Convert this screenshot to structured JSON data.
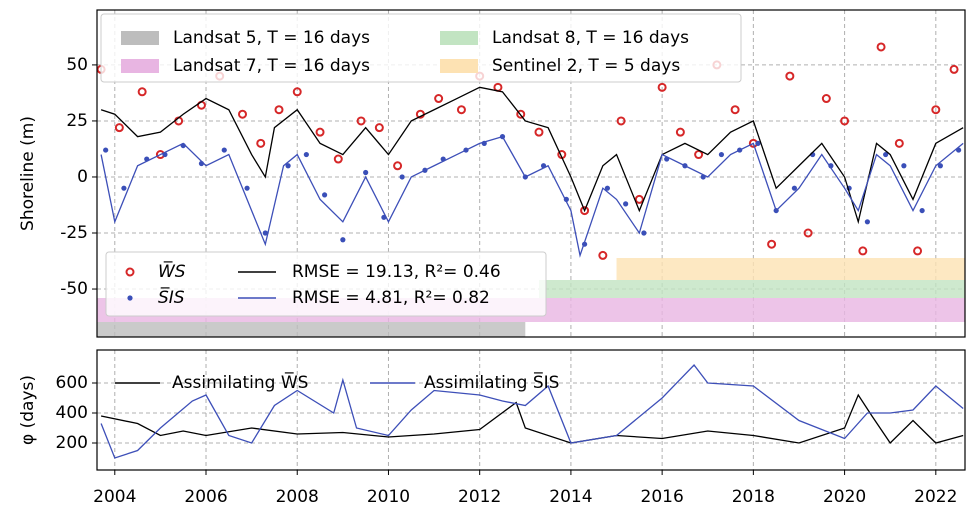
{
  "chart_data": [
    {
      "type": "combo",
      "ylabel": "Shoreline (m)",
      "xlim": [
        2003.61,
        2022.64
      ],
      "ylim": [
        -71.4,
        74.5
      ],
      "yticks": [
        -50,
        -25,
        0,
        25,
        50
      ],
      "grid": true,
      "missions": [
        {
          "name": "Landsat 5, T = 16 days",
          "color": "#bdbdbd",
          "start": 2003.61,
          "end": 2013.0
        },
        {
          "name": "Landsat 7, T = 16 days",
          "color": "#e8b5e2",
          "start": 2003.61,
          "end": 2022.64
        },
        {
          "name": "Landsat 8, T = 16 days",
          "color": "#c2e4c2",
          "start": 2013.3,
          "end": 2022.64
        },
        {
          "name": "Sentinel 2, T = 5 days",
          "color": "#fde2b3",
          "start": 2015.0,
          "end": 2022.64
        }
      ],
      "series": [
        {
          "name": "W̅S",
          "kind": "scatter",
          "color": "#d62728",
          "x": [
            2003.7,
            2004.1,
            2004.6,
            2005.0,
            2005.4,
            2005.9,
            2006.3,
            2006.8,
            2007.2,
            2007.6,
            2008.0,
            2008.5,
            2008.9,
            2009.4,
            2009.8,
            2010.2,
            2010.7,
            2011.1,
            2011.6,
            2012.0,
            2012.4,
            2012.9,
            2013.3,
            2013.8,
            2014.3,
            2014.7,
            2015.1,
            2015.5,
            2016.0,
            2016.4,
            2016.8,
            2017.2,
            2017.6,
            2018.0,
            2018.4,
            2018.8,
            2019.2,
            2019.6,
            2020.0,
            2020.4,
            2020.8,
            2021.2,
            2021.6,
            2022.0,
            2022.4
          ],
          "values": [
            48,
            22,
            38,
            10,
            25,
            32,
            45,
            28,
            15,
            30,
            38,
            20,
            8,
            25,
            22,
            5,
            28,
            35,
            30,
            45,
            40,
            28,
            20,
            10,
            -15,
            -35,
            25,
            -10,
            40,
            20,
            10,
            50,
            30,
            15,
            -30,
            45,
            -25,
            35,
            25,
            -33,
            58,
            15,
            -33,
            30,
            48
          ]
        },
        {
          "name": "S̅IS",
          "kind": "scatter",
          "color": "#3a4fb8",
          "x": [
            2003.8,
            2004.2,
            2004.7,
            2005.1,
            2005.5,
            2005.9,
            2006.4,
            2006.9,
            2007.3,
            2007.8,
            2008.2,
            2008.6,
            2009.0,
            2009.5,
            2009.9,
            2010.3,
            2010.8,
            2011.2,
            2011.7,
            2012.1,
            2012.5,
            2013.0,
            2013.4,
            2013.9,
            2014.3,
            2014.8,
            2015.2,
            2015.6,
            2016.1,
            2016.5,
            2016.9,
            2017.3,
            2017.7,
            2018.1,
            2018.5,
            2018.9,
            2019.3,
            2019.7,
            2020.1,
            2020.5,
            2020.9,
            2021.3,
            2021.7,
            2022.1,
            2022.5
          ],
          "values": [
            12,
            -5,
            8,
            10,
            14,
            6,
            12,
            -5,
            -25,
            5,
            10,
            -8,
            -28,
            2,
            -18,
            0,
            3,
            8,
            12,
            15,
            18,
            0,
            5,
            -10,
            -30,
            -5,
            -12,
            -25,
            8,
            5,
            0,
            10,
            12,
            15,
            -15,
            -5,
            10,
            5,
            -5,
            -20,
            10,
            5,
            -15,
            5,
            12
          ]
        },
        {
          "name": "RMSE = 19.13, R²= 0.46",
          "kind": "line",
          "color": "#000000",
          "x": [
            2003.7,
            2004,
            2004.5,
            2005,
            2005.5,
            2006,
            2006.5,
            2007,
            2007.3,
            2007.5,
            2008,
            2008.5,
            2009,
            2009.5,
            2010,
            2010.5,
            2011,
            2011.5,
            2012,
            2012.5,
            2013,
            2013.5,
            2014,
            2014.3,
            2014.7,
            2015,
            2015.5,
            2016,
            2016.5,
            2017,
            2017.5,
            2018,
            2018.5,
            2019,
            2019.5,
            2020,
            2020.3,
            2020.7,
            2021,
            2021.5,
            2022,
            2022.6
          ],
          "values": [
            30,
            28,
            18,
            20,
            28,
            35,
            30,
            10,
            0,
            22,
            30,
            15,
            10,
            22,
            10,
            25,
            30,
            35,
            40,
            38,
            25,
            22,
            0,
            -15,
            5,
            10,
            -15,
            10,
            15,
            10,
            20,
            25,
            -5,
            5,
            15,
            0,
            -20,
            15,
            10,
            -10,
            15,
            22
          ]
        },
        {
          "name": "RMSE = 4.81, R²= 0.82",
          "kind": "line",
          "color": "#3d4fb8",
          "x": [
            2003.7,
            2004,
            2004.5,
            2005,
            2005.5,
            2006,
            2006.5,
            2007,
            2007.3,
            2007.7,
            2008,
            2008.5,
            2009,
            2009.5,
            2010,
            2010.5,
            2011,
            2011.5,
            2012,
            2012.5,
            2013,
            2013.5,
            2014,
            2014.2,
            2014.7,
            2015,
            2015.5,
            2016,
            2016.5,
            2017,
            2017.5,
            2018,
            2018.5,
            2019,
            2019.5,
            2020,
            2020.3,
            2020.7,
            2021,
            2021.5,
            2022,
            2022.6
          ],
          "values": [
            10,
            -20,
            5,
            10,
            15,
            5,
            10,
            -15,
            -30,
            5,
            10,
            -10,
            -20,
            0,
            -20,
            0,
            5,
            10,
            15,
            18,
            0,
            5,
            -15,
            -35,
            -5,
            -10,
            -25,
            10,
            5,
            0,
            10,
            15,
            -15,
            -5,
            10,
            -5,
            -15,
            10,
            5,
            -15,
            5,
            15
          ]
        }
      ]
    },
    {
      "type": "line",
      "ylabel": "φ (days)",
      "xlim": [
        2003.61,
        2022.64
      ],
      "ylim": [
        20,
        820
      ],
      "yticks": [
        200,
        400,
        600
      ],
      "xticks": [
        2004,
        2006,
        2008,
        2010,
        2012,
        2014,
        2016,
        2018,
        2020,
        2022
      ],
      "grid": true,
      "series": [
        {
          "name": "Assimilating W̅S",
          "color": "#000000",
          "x": [
            2003.7,
            2004.5,
            2005,
            2005.5,
            2006,
            2007,
            2008,
            2009,
            2010,
            2011,
            2012,
            2012.8,
            2013,
            2014,
            2015,
            2016,
            2017,
            2018,
            2019,
            2020,
            2020.3,
            2020.6,
            2021,
            2021.5,
            2022,
            2022.6
          ],
          "values": [
            380,
            330,
            250,
            280,
            250,
            300,
            260,
            270,
            240,
            260,
            290,
            470,
            300,
            200,
            250,
            230,
            280,
            250,
            200,
            300,
            520,
            380,
            200,
            350,
            200,
            250
          ]
        },
        {
          "name": "Assimilating S̅IS",
          "color": "#3d4fb8",
          "x": [
            2003.7,
            2004,
            2004.5,
            2005,
            2005.7,
            2006,
            2006.5,
            2007,
            2007.5,
            2008,
            2008.8,
            2009,
            2009.3,
            2010,
            2010.5,
            2011,
            2012,
            2012.5,
            2013,
            2013.5,
            2014,
            2015,
            2016,
            2016.7,
            2017,
            2018,
            2019,
            2020,
            2020.5,
            2021,
            2021.5,
            2022,
            2022.6
          ],
          "values": [
            330,
            100,
            150,
            300,
            480,
            520,
            250,
            200,
            450,
            550,
            400,
            620,
            300,
            250,
            420,
            550,
            520,
            480,
            450,
            580,
            200,
            250,
            500,
            720,
            600,
            580,
            350,
            230,
            400,
            400,
            420,
            580,
            430
          ]
        }
      ]
    }
  ]
}
